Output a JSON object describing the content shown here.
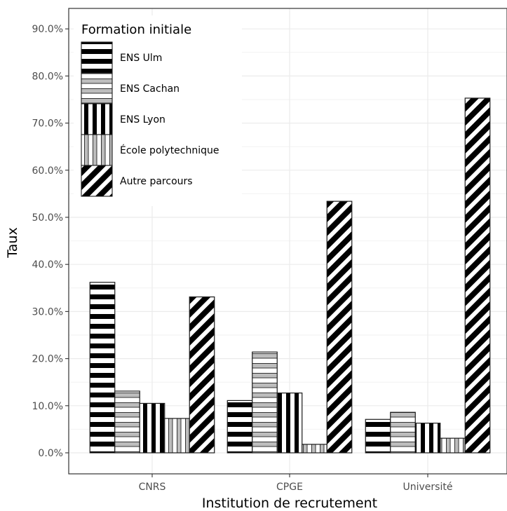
{
  "chart_data": {
    "type": "bar",
    "xlabel": "Institution de recrutement",
    "ylabel": "Taux",
    "categories": [
      "CNRS",
      "CPGE",
      "Université"
    ],
    "y_ticks": [
      "0.0%",
      "10.0%",
      "20.0%",
      "30.0%",
      "40.0%",
      "50.0%",
      "60.0%",
      "70.0%",
      "80.0%",
      "90.0%"
    ],
    "ylim": [
      0,
      90
    ],
    "grid": true,
    "legend": {
      "title": "Formation initiale",
      "placement": "top-left",
      "entries": [
        "ENS Ulm",
        "ENS Cachan",
        "ENS Lyon",
        "École polytechnique",
        "Autre parcours"
      ]
    },
    "series": [
      {
        "name": "ENS Ulm",
        "pattern": "hstripe-black",
        "values": [
          36.2,
          11.1,
          7.1
        ]
      },
      {
        "name": "ENS Cachan",
        "pattern": "hstripe-grey",
        "values": [
          13.1,
          21.4,
          8.6
        ]
      },
      {
        "name": "ENS Lyon",
        "pattern": "vstripe-black",
        "values": [
          10.5,
          12.7,
          6.3
        ]
      },
      {
        "name": "École polytechnique",
        "pattern": "vstripe-grey",
        "values": [
          7.3,
          1.8,
          3.1
        ]
      },
      {
        "name": "Autre parcours",
        "pattern": "diag-black",
        "values": [
          33.1,
          53.4,
          75.3
        ]
      }
    ]
  }
}
